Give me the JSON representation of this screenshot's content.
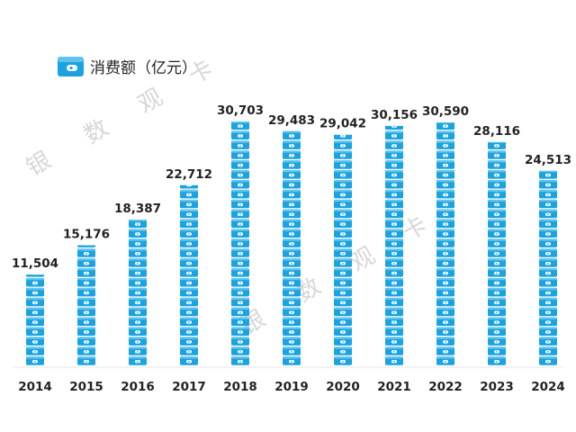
{
  "chart_data": {
    "type": "bar",
    "series": [
      {
        "name": "消费额（亿元）",
        "values": [
          11504,
          15176,
          18387,
          22712,
          30703,
          29483,
          29042,
          30156,
          30590,
          28116,
          24513
        ]
      }
    ],
    "categories": [
      "2014",
      "2015",
      "2016",
      "2017",
      "2018",
      "2019",
      "2020",
      "2021",
      "2022",
      "2023",
      "2024"
    ],
    "value_labels": [
      "11,504",
      "15,176",
      "18,387",
      "22,712",
      "30,703",
      "29,483",
      "29,042",
      "30,156",
      "30,590",
      "28,116",
      "24,513"
    ],
    "ylim": [
      0,
      30703
    ],
    "grid": false,
    "legend_position": "top-left",
    "bar_style": "stacked wallet pictograms",
    "bar_color": "#1aa3e0"
  },
  "watermark": {
    "top": [
      "银",
      "数",
      "观",
      "卡"
    ],
    "bottom": [
      "银",
      "数",
      "观",
      "卡"
    ]
  },
  "legend_icon": "wallet-icon"
}
